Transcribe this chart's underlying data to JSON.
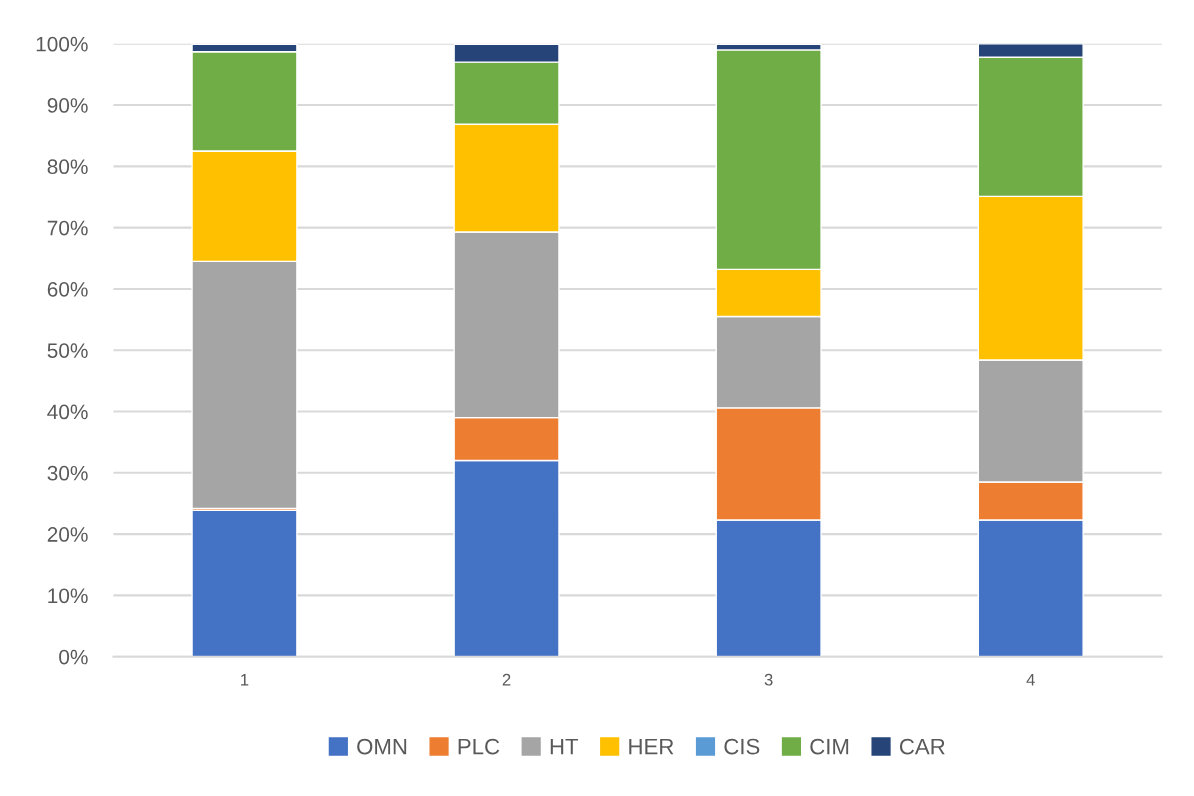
{
  "chart_data": {
    "type": "bar",
    "stacked": true,
    "categories": [
      "1",
      "2",
      "3",
      "4"
    ],
    "series": [
      {
        "name": "OMN",
        "color": "#4472c4",
        "values": [
          23.9,
          32.0,
          22.3,
          22.3
        ]
      },
      {
        "name": "PLC",
        "color": "#ed7d31",
        "values": [
          0.3,
          7.0,
          18.3,
          6.2
        ]
      },
      {
        "name": "HT",
        "color": "#a5a5a5",
        "values": [
          40.3,
          30.3,
          14.9,
          19.9
        ]
      },
      {
        "name": "HER",
        "color": "#ffc000",
        "values": [
          18.0,
          17.6,
          7.7,
          26.7
        ]
      },
      {
        "name": "CIS",
        "color": "#5b9bd5",
        "values": [
          null,
          null,
          null,
          null
        ]
      },
      {
        "name": "CIM",
        "color": "#70ad47",
        "values": [
          16.2,
          10.1,
          35.8,
          22.7
        ]
      },
      {
        "name": "CAR",
        "color": "#264478",
        "values": [
          1.2,
          2.9,
          0.9,
          2.2
        ]
      }
    ],
    "ylim": [
      0,
      100
    ],
    "yticks": [
      {
        "value": 0,
        "label": "0%"
      },
      {
        "value": 10,
        "label": "10%"
      },
      {
        "value": 20,
        "label": "20%"
      },
      {
        "value": 30,
        "label": "30%"
      },
      {
        "value": 40,
        "label": "40%"
      },
      {
        "value": 50,
        "label": "50%"
      },
      {
        "value": 60,
        "label": "60%"
      },
      {
        "value": 70,
        "label": "70%"
      },
      {
        "value": 80,
        "label": "80%"
      },
      {
        "value": 90,
        "label": "90%"
      },
      {
        "value": 100,
        "label": "100%"
      }
    ],
    "grid": "y",
    "legend": "bottom"
  }
}
